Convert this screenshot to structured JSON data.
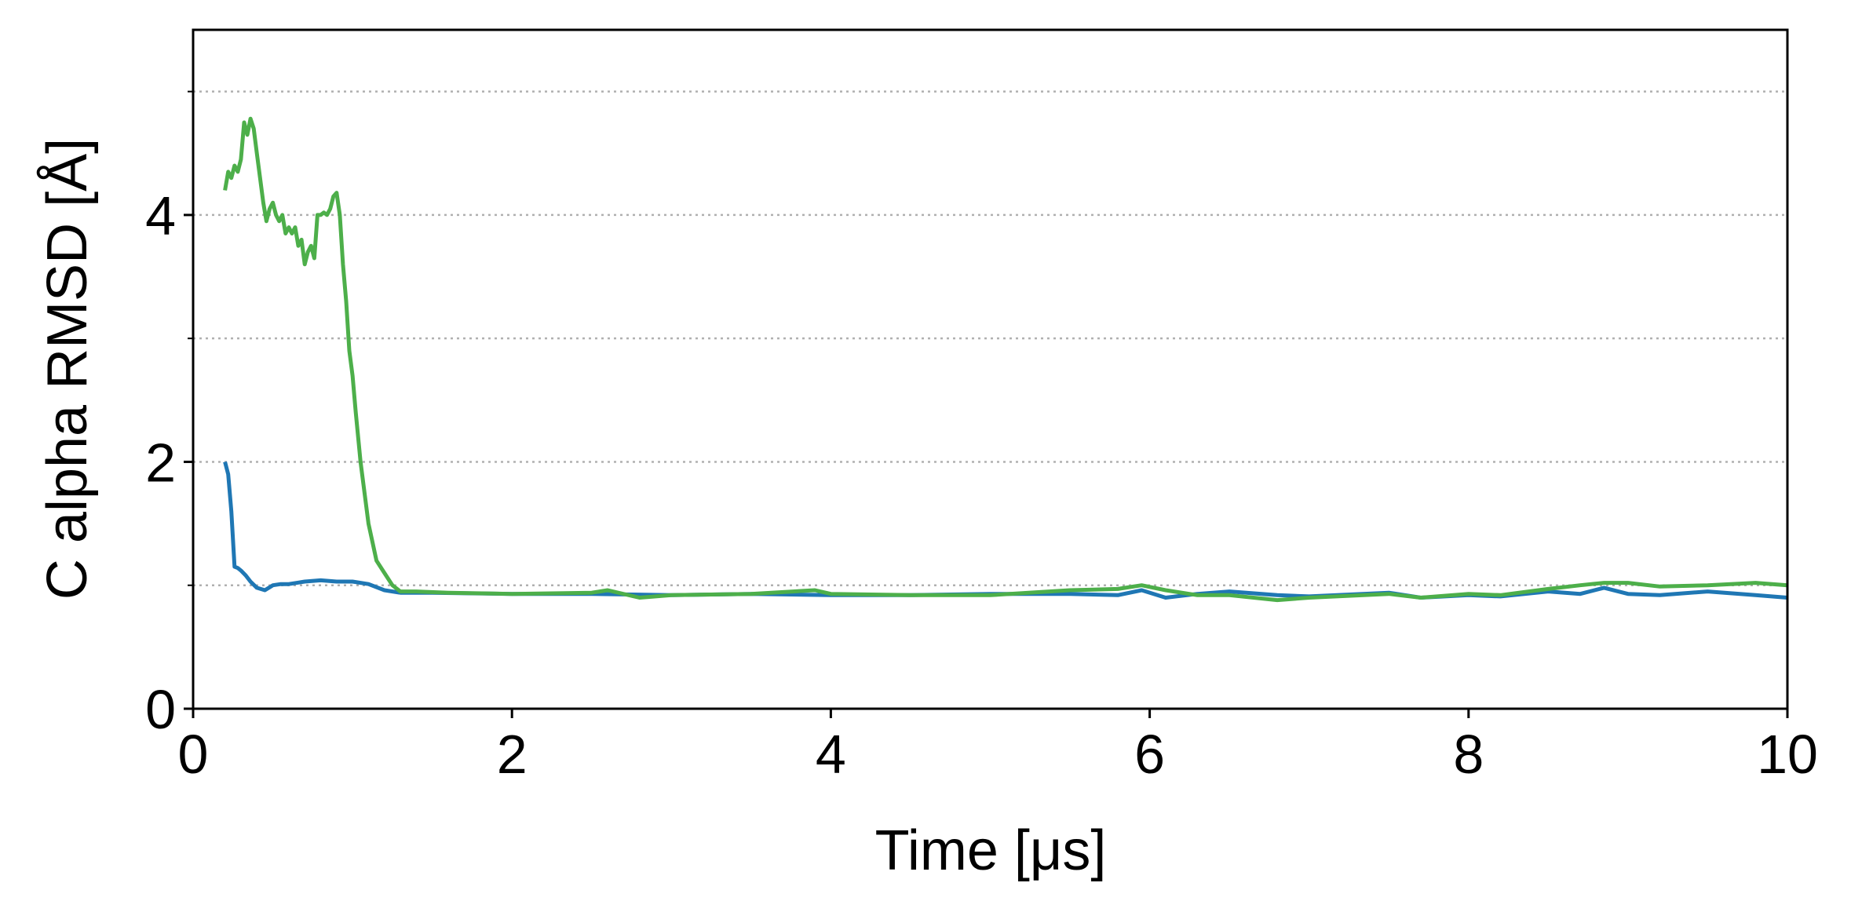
{
  "chart_data": {
    "type": "line",
    "title": "",
    "xlabel": "Time [μs]",
    "ylabel": "C alpha RMSD [Å]",
    "xlim": [
      0,
      10
    ],
    "ylim": [
      0,
      5.5
    ],
    "xticks": [
      0,
      2,
      4,
      6,
      8,
      10
    ],
    "xtick_labels": [
      "0",
      "2",
      "4",
      "6",
      "8",
      "10"
    ],
    "yticks": [
      0,
      2,
      4
    ],
    "ytick_labels": [
      "0",
      "2",
      "4"
    ],
    "y_minor_ticks": [
      1,
      3,
      5
    ],
    "grid": {
      "axis": "y",
      "style": "dotted",
      "at": [
        1,
        2,
        3,
        4,
        5
      ]
    },
    "legend": "none",
    "series": [
      {
        "color": "#1f77b4",
        "x": [
          0.2,
          0.22,
          0.24,
          0.26,
          0.28,
          0.3,
          0.33,
          0.36,
          0.4,
          0.45,
          0.5,
          0.55,
          0.6,
          0.7,
          0.8,
          0.9,
          1.0,
          1.1,
          1.2,
          1.3,
          1.5,
          2.0,
          2.5,
          3.0,
          3.5,
          4.0,
          4.5,
          5.0,
          5.5,
          5.8,
          5.95,
          6.1,
          6.3,
          6.5,
          6.8,
          7.0,
          7.5,
          7.7,
          8.0,
          8.2,
          8.5,
          8.7,
          8.85,
          9.0,
          9.2,
          9.5,
          9.8,
          10.0
        ],
        "y": [
          2.0,
          1.9,
          1.6,
          1.15,
          1.14,
          1.12,
          1.08,
          1.03,
          0.98,
          0.96,
          1.0,
          1.01,
          1.01,
          1.03,
          1.04,
          1.03,
          1.03,
          1.01,
          0.96,
          0.94,
          0.94,
          0.93,
          0.93,
          0.92,
          0.93,
          0.92,
          0.92,
          0.93,
          0.93,
          0.92,
          0.96,
          0.9,
          0.93,
          0.95,
          0.92,
          0.91,
          0.94,
          0.9,
          0.92,
          0.91,
          0.95,
          0.93,
          0.98,
          0.93,
          0.92,
          0.95,
          0.92,
          0.9
        ]
      },
      {
        "color": "#4daf4a",
        "x": [
          0.2,
          0.22,
          0.24,
          0.26,
          0.28,
          0.3,
          0.32,
          0.34,
          0.36,
          0.38,
          0.4,
          0.42,
          0.44,
          0.46,
          0.48,
          0.5,
          0.52,
          0.54,
          0.56,
          0.58,
          0.6,
          0.62,
          0.64,
          0.66,
          0.68,
          0.7,
          0.72,
          0.74,
          0.76,
          0.78,
          0.8,
          0.82,
          0.84,
          0.86,
          0.88,
          0.9,
          0.92,
          0.94,
          0.96,
          0.98,
          1.0,
          1.02,
          1.05,
          1.1,
          1.15,
          1.2,
          1.25,
          1.3,
          1.4,
          1.6,
          2.0,
          2.5,
          2.6,
          2.8,
          3.0,
          3.5,
          3.9,
          4.0,
          4.5,
          5.0,
          5.5,
          5.8,
          5.95,
          6.1,
          6.3,
          6.5,
          6.8,
          7.0,
          7.5,
          7.7,
          8.0,
          8.2,
          8.5,
          8.7,
          8.85,
          9.0,
          9.2,
          9.5,
          9.8,
          10.0
        ],
        "y": [
          4.2,
          4.35,
          4.3,
          4.4,
          4.35,
          4.45,
          4.75,
          4.65,
          4.78,
          4.7,
          4.5,
          4.3,
          4.1,
          3.95,
          4.05,
          4.1,
          4.0,
          3.95,
          4.0,
          3.85,
          3.9,
          3.85,
          3.9,
          3.75,
          3.8,
          3.6,
          3.7,
          3.75,
          3.65,
          4.0,
          4.0,
          4.02,
          4.0,
          4.05,
          4.15,
          4.18,
          4.0,
          3.6,
          3.3,
          2.9,
          2.7,
          2.4,
          2.0,
          1.5,
          1.2,
          1.1,
          1.0,
          0.95,
          0.95,
          0.94,
          0.93,
          0.94,
          0.96,
          0.9,
          0.92,
          0.93,
          0.96,
          0.93,
          0.92,
          0.92,
          0.96,
          0.97,
          1.0,
          0.96,
          0.92,
          0.92,
          0.88,
          0.9,
          0.93,
          0.9,
          0.93,
          0.92,
          0.97,
          1.0,
          1.02,
          1.02,
          0.99,
          1.0,
          1.02,
          1.0
        ]
      }
    ]
  }
}
